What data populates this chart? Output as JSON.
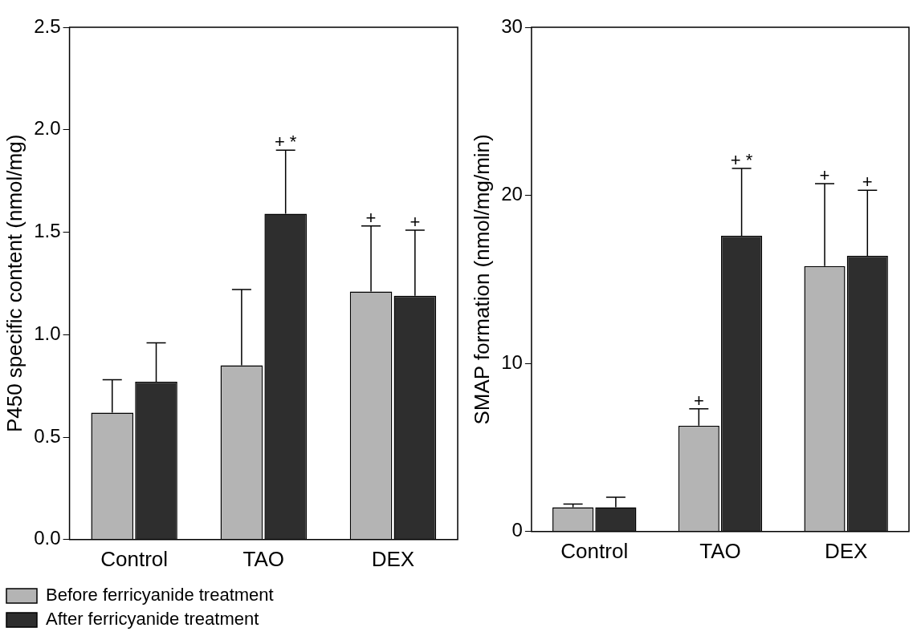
{
  "chart_data": [
    {
      "type": "bar",
      "ylabel": "P450 specific content (nmol/mg)",
      "categories": [
        "Control",
        "TAO",
        "DEX"
      ],
      "ylim": [
        0,
        2.5
      ],
      "yticks": [
        {
          "value": 0,
          "label": "0.0"
        },
        0.5,
        {
          "value": 1,
          "label": "1.0"
        },
        1.5,
        {
          "value": 2,
          "label": "2.0"
        },
        2.5
      ],
      "grid": false,
      "legend": "bottom",
      "series": [
        {
          "name": "Before ferricyanide treatment",
          "color": "#b4b4b4",
          "values": [
            0.62,
            0.85,
            1.21
          ],
          "errors": [
            0.16,
            0.37,
            0.32
          ]
        },
        {
          "name": "After ferricyanide treatment",
          "color": "#2e2e2e",
          "values": [
            0.77,
            1.59,
            1.19
          ],
          "errors": [
            0.19,
            0.31,
            0.32
          ]
        }
      ],
      "annotations": [
        "+ *",
        "+",
        "+"
      ]
    },
    {
      "type": "bar",
      "ylabel": "SMAP formation (nmol/mg/min)",
      "categories": [
        "Control",
        "TAO",
        "DEX"
      ],
      "ylim": [
        0,
        30
      ],
      "yticks": [
        0,
        10,
        20,
        30
      ],
      "grid": false,
      "series": [
        {
          "color": "#b4b4b4",
          "values": [
            1.44,
            6.3,
            15.8
          ],
          "errors": [
            0.2,
            1.0,
            4.9
          ]
        },
        {
          "color": "#2e2e2e",
          "values": [
            1.44,
            17.6,
            16.4
          ],
          "errors": [
            0.6,
            4.0,
            3.9
          ]
        }
      ],
      "annotations": [
        "+",
        "+ *",
        "+",
        "+"
      ]
    }
  ]
}
